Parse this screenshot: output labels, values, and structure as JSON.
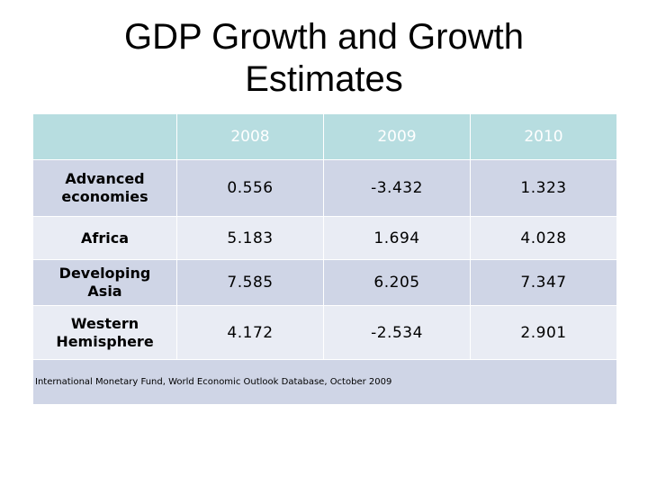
{
  "slide": {
    "title_line1": "GDP Growth and Growth",
    "title_line2": "Estimates"
  },
  "table": {
    "corner": "",
    "years": [
      "2008",
      "2009",
      "2010"
    ],
    "rows": [
      {
        "region_line1": "Advanced",
        "region_line2": "economies",
        "values": [
          "0.556",
          "-3.432",
          "1.323"
        ]
      },
      {
        "region_line1": "Africa",
        "region_line2": "",
        "values": [
          "5.183",
          "1.694",
          "4.028"
        ]
      },
      {
        "region_line1": "Developing",
        "region_line2": "Asia",
        "values": [
          "7.585",
          "6.205",
          "7.347"
        ]
      },
      {
        "region_line1": "Western",
        "region_line2": "Hemisphere",
        "values": [
          "4.172",
          "-2.534",
          "2.901"
        ]
      }
    ],
    "source": "International Monetary Fund, World Economic Outlook Database, October 2009"
  },
  "colors": {
    "header_bg": "#b7dde0",
    "row_dark": "#cfd5e6",
    "row_light": "#e9ecf4"
  }
}
